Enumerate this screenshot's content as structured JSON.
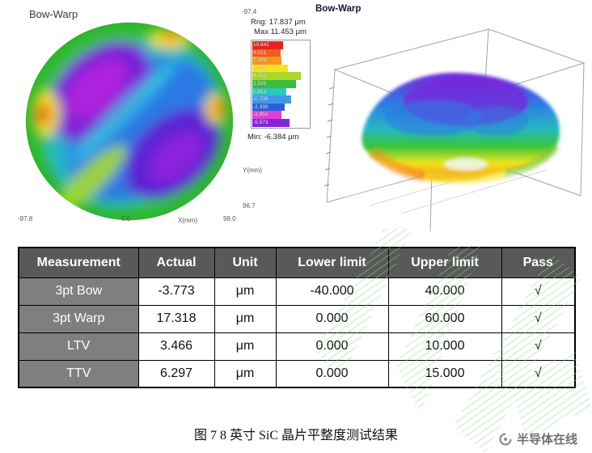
{
  "colors": {
    "header_bg": "#595959",
    "rowhead_bg": "#7f7f7f",
    "table_border": "#000000",
    "plot_title": "#3a3a3a",
    "plot3d_title": "#14142a",
    "axis_text": "#555555",
    "watermark_green": "#94d496",
    "brand_gray": "#707070"
  },
  "left_plot": {
    "title": "Bow-Warp",
    "y_axis": {
      "label": "Y(mm)",
      "top_tick": "-97.4",
      "bottom_tick": "96.7"
    },
    "x_axis": {
      "label": "X(mm)",
      "left_tick": "-97.8",
      "mid_tick": "0.0",
      "right_tick": "98.0"
    }
  },
  "legend": {
    "rng": "Rng: 17.837 μm",
    "max": "Max 11.453 μm",
    "min": "Min: -6.384 μm",
    "entries": [
      {
        "value": "10.642",
        "color": "#e8231d",
        "bar": 8
      },
      {
        "value": "9.021",
        "color": "#f25c1e",
        "bar": 5
      },
      {
        "value": "7.399",
        "color": "#f8941f",
        "bar": 6
      },
      {
        "value": "5.778",
        "color": "#f2e421",
        "bar": 14
      },
      {
        "value": "4.156",
        "color": "#a8d829",
        "bar": 30
      },
      {
        "value": "2.535",
        "color": "#3dbb3a",
        "bar": 24
      },
      {
        "value": "0.913",
        "color": "#2fc6c0",
        "bar": 12
      },
      {
        "value": "-0.709",
        "color": "#3e9ae8",
        "bar": 18
      },
      {
        "value": "-2.330",
        "color": "#2f5fd8",
        "bar": 10
      },
      {
        "value": "-3.952",
        "color": "#e23ed4",
        "bar": 6
      },
      {
        "value": "-5.573",
        "color": "#8426d8",
        "bar": 16
      }
    ]
  },
  "right_plot": {
    "title": "Bow-Warp"
  },
  "table": {
    "headers": [
      "Measurement",
      "Actual",
      "Unit",
      "Lower limit",
      "Upper limit",
      "Pass"
    ],
    "rows": [
      {
        "name": "3pt Bow",
        "actual": "-3.773",
        "unit": "μm",
        "lower": "-40.000",
        "upper": "40.000",
        "pass": "√"
      },
      {
        "name": "3pt Warp",
        "actual": "17.318",
        "unit": "μm",
        "lower": "0.000",
        "upper": "60.000",
        "pass": "√"
      },
      {
        "name": "LTV",
        "actual": "3.466",
        "unit": "μm",
        "lower": "0.000",
        "upper": "10.000",
        "pass": "√"
      },
      {
        "name": "TTV",
        "actual": "6.297",
        "unit": "μm",
        "lower": "0.000",
        "upper": "15.000",
        "pass": "√"
      }
    ]
  },
  "caption": {
    "text": "图 7  8 英寸 SiC 晶片平整度测试结果"
  },
  "brand": {
    "name": "半导体在线"
  },
  "chart_data": [
    {
      "type": "heatmap",
      "title": "Bow-Warp",
      "xlabel": "X(mm)",
      "ylabel": "Y(mm)",
      "x_range": [
        -97.8,
        98.0
      ],
      "y_range": [
        -97.4,
        96.7
      ],
      "range_um": 17.837,
      "max_um": 11.453,
      "min_um": -6.384,
      "colorbar_levels_um": [
        10.642,
        9.021,
        7.399,
        5.778,
        4.156,
        2.535,
        0.913,
        -0.709,
        -2.33,
        -3.952,
        -5.573
      ],
      "legend_position": "right"
    },
    {
      "type": "table",
      "title": "8-inch SiC wafer flatness test results",
      "columns": [
        "Measurement",
        "Actual",
        "Unit",
        "Lower limit",
        "Upper limit",
        "Pass"
      ],
      "rows": [
        [
          "3pt Bow",
          -3.773,
          "μm",
          -40.0,
          40.0,
          "√"
        ],
        [
          "3pt Warp",
          17.318,
          "μm",
          0.0,
          60.0,
          "√"
        ],
        [
          "LTV",
          3.466,
          "μm",
          0.0,
          10.0,
          "√"
        ],
        [
          "TTV",
          6.297,
          "μm",
          0.0,
          15.0,
          "√"
        ]
      ]
    }
  ]
}
